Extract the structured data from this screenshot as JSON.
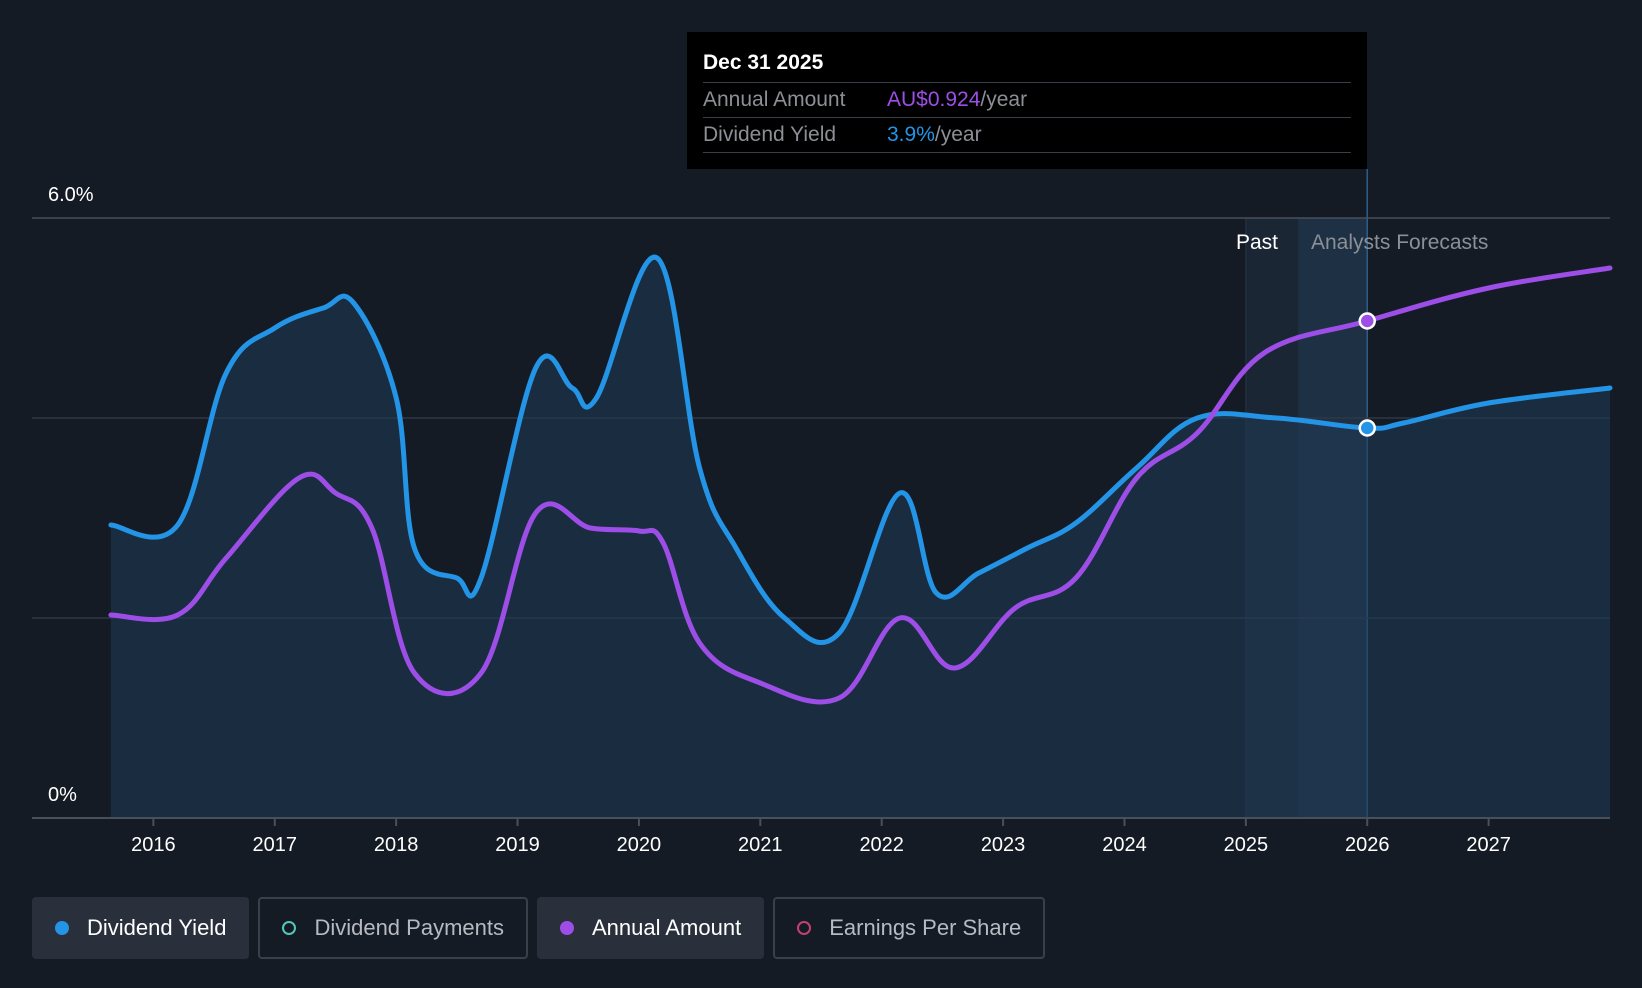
{
  "tooltip": {
    "date": "Dec 31 2025",
    "row1_label": "Annual Amount",
    "row1_value": "AU$0.924",
    "row1_unit": "/year",
    "row2_label": "Dividend Yield",
    "row2_value": "3.9%",
    "row2_unit": "/year"
  },
  "regions": {
    "past_label": "Past",
    "forecast_label": "Analysts Forecasts"
  },
  "legend": [
    {
      "label": "Dividend Yield",
      "color": "#2394e6",
      "active": true,
      "filled": true
    },
    {
      "label": "Dividend Payments",
      "color": "#4fc9b8",
      "active": false,
      "filled": false
    },
    {
      "label": "Annual Amount",
      "color": "#9d4ee6",
      "active": true,
      "filled": true
    },
    {
      "label": "Earnings Per Share",
      "color": "#c2416e",
      "active": false,
      "filled": false
    }
  ],
  "colors": {
    "yield": "#2394e6",
    "annual": "#9d4ee6",
    "background": "#151b25",
    "grid": "#3a404b"
  },
  "chart_data": {
    "type": "line",
    "xlim": [
      2015.0,
      2028.0
    ],
    "ylim": [
      0,
      6.0
    ],
    "y_tick_labels": [
      "0%",
      "6.0%"
    ],
    "x_ticks": [
      2016,
      2017,
      2018,
      2019,
      2020,
      2021,
      2022,
      2023,
      2024,
      2025,
      2026,
      2027
    ],
    "x_tick_labels": [
      "2016",
      "2017",
      "2018",
      "2019",
      "2020",
      "2021",
      "2022",
      "2023",
      "2024",
      "2025",
      "2026",
      "2027"
    ],
    "gridlines_y": [
      2.0,
      4.0,
      6.0
    ],
    "past_band": [
      2025.0,
      2025.43
    ],
    "forecast_band": [
      2025.43,
      2026.0
    ],
    "highlight_x": 2026.0,
    "series": [
      {
        "name": "Dividend Yield",
        "unit": "%",
        "points": [
          [
            2015.65,
            2.93
          ],
          [
            2016.2,
            2.93
          ],
          [
            2016.6,
            4.45
          ],
          [
            2017.0,
            4.9
          ],
          [
            2017.4,
            5.1
          ],
          [
            2017.65,
            5.15
          ],
          [
            2018.0,
            4.2
          ],
          [
            2018.15,
            2.7
          ],
          [
            2018.5,
            2.4
          ],
          [
            2018.7,
            2.4
          ],
          [
            2019.15,
            4.5
          ],
          [
            2019.45,
            4.3
          ],
          [
            2019.65,
            4.2
          ],
          [
            2020.15,
            5.6
          ],
          [
            2020.5,
            3.5
          ],
          [
            2020.8,
            2.7
          ],
          [
            2021.2,
            2.0
          ],
          [
            2021.65,
            1.85
          ],
          [
            2022.15,
            3.25
          ],
          [
            2022.45,
            2.25
          ],
          [
            2022.8,
            2.45
          ],
          [
            2023.2,
            2.7
          ],
          [
            2023.6,
            2.95
          ],
          [
            2024.1,
            3.5
          ],
          [
            2024.6,
            4.0
          ],
          [
            2025.25,
            4.0
          ],
          [
            2026.0,
            3.9
          ],
          [
            2026.3,
            3.95
          ],
          [
            2027.0,
            4.15
          ],
          [
            2028.0,
            4.3
          ]
        ]
      },
      {
        "name": "Annual Amount",
        "unit": "AU$",
        "points": [
          [
            2015.65,
            2.03
          ],
          [
            2016.2,
            2.03
          ],
          [
            2016.6,
            2.6
          ],
          [
            2017.2,
            3.4
          ],
          [
            2017.5,
            3.25
          ],
          [
            2017.8,
            2.9
          ],
          [
            2018.15,
            1.45
          ],
          [
            2018.7,
            1.45
          ],
          [
            2019.15,
            3.05
          ],
          [
            2019.6,
            2.9
          ],
          [
            2020.0,
            2.87
          ],
          [
            2020.2,
            2.75
          ],
          [
            2020.5,
            1.75
          ],
          [
            2021.0,
            1.35
          ],
          [
            2021.65,
            1.2
          ],
          [
            2022.15,
            2.0
          ],
          [
            2022.6,
            1.5
          ],
          [
            2023.1,
            2.1
          ],
          [
            2023.6,
            2.4
          ],
          [
            2024.1,
            3.4
          ],
          [
            2024.6,
            3.85
          ],
          [
            2025.15,
            4.65
          ],
          [
            2026.0,
            4.97
          ],
          [
            2027.0,
            5.3
          ],
          [
            2028.0,
            5.5
          ]
        ]
      }
    ]
  }
}
